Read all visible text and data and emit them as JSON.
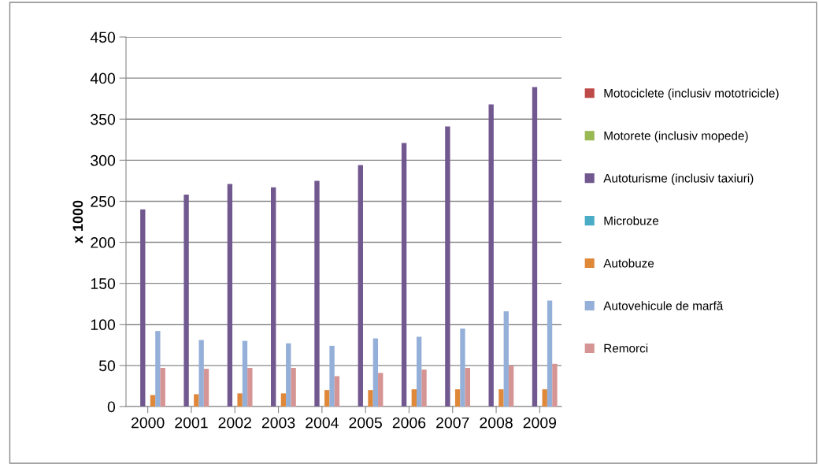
{
  "chart_data": {
    "type": "bar",
    "ylabel": "x 1000",
    "categories": [
      "2000",
      "2001",
      "2002",
      "2003",
      "2004",
      "2005",
      "2006",
      "2007",
      "2008",
      "2009"
    ],
    "series": [
      {
        "name": "Motociclete (inclusiv mototricicle)",
        "color": "#be4b48",
        "values": [
          0,
          0,
          0,
          0,
          0,
          0,
          0,
          0,
          0,
          0
        ]
      },
      {
        "name": "Motorete (inclusiv mopede)",
        "color": "#98b954",
        "values": [
          0,
          0,
          0,
          0,
          0,
          0,
          0,
          0,
          0,
          0
        ]
      },
      {
        "name": "Autoturisme (inclusiv taxiuri)",
        "color": "#71588f",
        "values": [
          240,
          258,
          271,
          267,
          275,
          294,
          321,
          341,
          368,
          389
        ]
      },
      {
        "name": "Microbuze",
        "color": "#4bacc6",
        "values": [
          0,
          0,
          0,
          0,
          0,
          0,
          0,
          0,
          0,
          0
        ]
      },
      {
        "name": "Autobuze",
        "color": "#e0883a",
        "values": [
          14,
          15,
          16,
          16,
          20,
          20,
          21,
          21,
          21,
          21
        ]
      },
      {
        "name": "Autovehicule de marfă",
        "color": "#95b0d8",
        "values": [
          92,
          81,
          80,
          77,
          74,
          83,
          85,
          95,
          116,
          129
        ]
      },
      {
        "name": "Remorci",
        "color": "#d59594",
        "values": [
          47,
          46,
          47,
          47,
          37,
          41,
          45,
          47,
          50,
          52
        ]
      }
    ],
    "ylim": [
      0,
      450
    ],
    "yticks": [
      0,
      50,
      100,
      150,
      200,
      250,
      300,
      350,
      400,
      450
    ],
    "grid": "y",
    "legend": "right"
  }
}
